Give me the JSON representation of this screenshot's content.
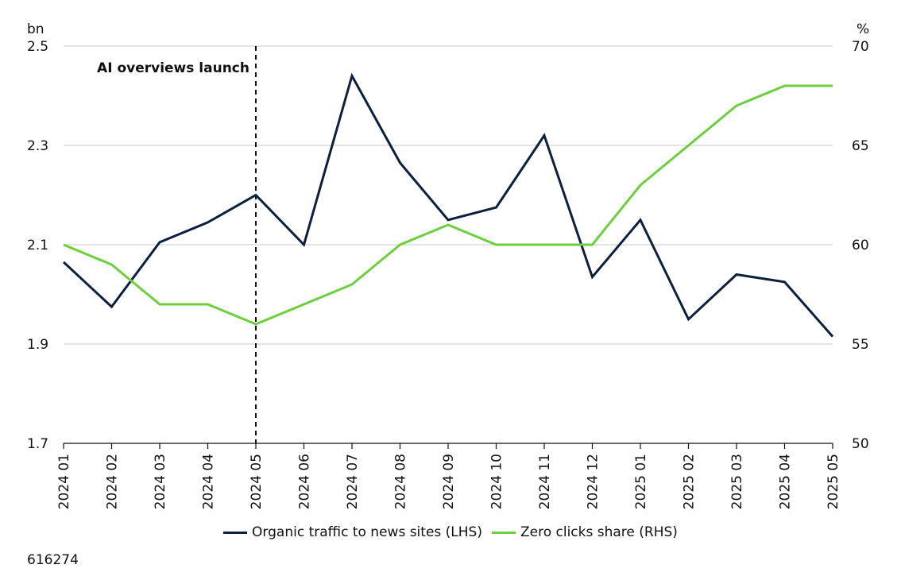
{
  "chart_data": {
    "type": "line",
    "categories": [
      "2024 01",
      "2024 02",
      "2024 03",
      "2024 04",
      "2024 05",
      "2024 06",
      "2024 07",
      "2024 08",
      "2024 09",
      "2024 10",
      "2024 11",
      "2024 12",
      "2025 01",
      "2025 02",
      "2025 03",
      "2025 04",
      "2025 05"
    ],
    "left_axis": {
      "unit": "bn",
      "ylim": [
        1.7,
        2.5
      ],
      "ticks": [
        "2.5",
        "2.3",
        "2.1",
        "1.9",
        "1.7"
      ]
    },
    "right_axis": {
      "unit": "%",
      "ylim": [
        50,
        70
      ],
      "ticks": [
        "70",
        "65",
        "60",
        "55",
        "50"
      ]
    },
    "series": [
      {
        "name": "Organic traffic to news sites (LHS)",
        "axis": "left",
        "color": "#0b1f3f",
        "values": [
          2.065,
          1.975,
          2.105,
          2.145,
          2.2,
          2.1,
          2.44,
          2.265,
          2.15,
          2.175,
          2.32,
          2.035,
          2.15,
          1.95,
          2.04,
          2.025,
          1.915
        ]
      },
      {
        "name": "Zero clicks share (RHS)",
        "axis": "right",
        "color": "#6ccf3c",
        "values": [
          60,
          59,
          57,
          57,
          56,
          57,
          58,
          60,
          61,
          60,
          60,
          60,
          63,
          65,
          67,
          68,
          68
        ]
      }
    ],
    "annotations": [
      {
        "text": "AI overviews launch",
        "x": "2024 05"
      }
    ],
    "grid": true,
    "legend": "bottom-center"
  },
  "footer": {
    "code": "616274"
  }
}
